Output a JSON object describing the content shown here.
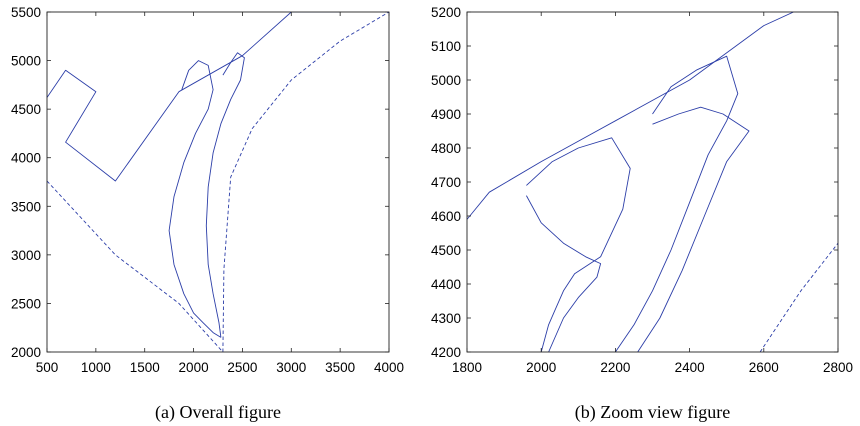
{
  "colors": {
    "line": "#2c3ea8",
    "axes": "#222222"
  },
  "chart_data": [
    {
      "type": "line",
      "caption": "(a) Overall figure",
      "xlim": [
        500,
        4000
      ],
      "ylim": [
        2000,
        5500
      ],
      "xticks": [
        500,
        1000,
        1500,
        2000,
        2500,
        3000,
        3500,
        4000
      ],
      "yticks": [
        2000,
        2500,
        3000,
        3500,
        4000,
        4500,
        5000,
        5500
      ],
      "grid": false,
      "series": [
        {
          "style": "solid",
          "x": [
            500,
            690,
            1000,
            690,
            1200,
            1850,
            2500,
            3000,
            3500
          ],
          "y": [
            4620,
            4900,
            4680,
            4160,
            3760,
            4680,
            5050,
            5500,
            5500
          ]
        },
        {
          "style": "dashed",
          "x": [
            500,
            1200,
            1850,
            2300
          ],
          "y": [
            3760,
            3000,
            2500,
            2000
          ]
        },
        {
          "style": "dashed",
          "x": [
            2300,
            2310,
            2380,
            2600,
            3000,
            3500,
            4000
          ],
          "y": [
            2000,
            2850,
            3800,
            4300,
            4800,
            5200,
            5500
          ]
        },
        {
          "style": "solid",
          "x": [
            1880,
            1950,
            2050,
            2150,
            2200,
            2150,
            2020,
            1900,
            1800,
            1750,
            1800,
            1900,
            2000,
            2100,
            2200,
            2280
          ],
          "y": [
            4700,
            4900,
            5000,
            4950,
            4700,
            4500,
            4250,
            3950,
            3600,
            3250,
            2900,
            2600,
            2400,
            2300,
            2200,
            2150
          ]
        },
        {
          "style": "solid",
          "x": [
            2300,
            2380,
            2450,
            2520,
            2480,
            2380,
            2280,
            2200,
            2150,
            2130,
            2150,
            2200,
            2260,
            2280
          ],
          "y": [
            4850,
            4980,
            5080,
            5030,
            4800,
            4600,
            4350,
            4050,
            3700,
            3300,
            2900,
            2600,
            2300,
            2150
          ]
        }
      ]
    },
    {
      "type": "line",
      "caption": "(b) Zoom view figure",
      "xlim": [
        1800,
        2800
      ],
      "ylim": [
        4200,
        5200
      ],
      "xticks": [
        1800,
        2000,
        2200,
        2400,
        2600,
        2800
      ],
      "yticks": [
        4200,
        4300,
        4400,
        4500,
        4600,
        4700,
        4800,
        4900,
        5000,
        5100,
        5200
      ],
      "grid": false,
      "series": [
        {
          "style": "solid",
          "x": [
            1800,
            1860,
            2000,
            2200,
            2400,
            2600,
            2680
          ],
          "y": [
            4590,
            4670,
            4760,
            4880,
            5000,
            5160,
            5200
          ]
        },
        {
          "style": "dashed",
          "x": [
            2590,
            2700,
            2800
          ],
          "y": [
            4200,
            4380,
            4520
          ]
        },
        {
          "style": "solid",
          "x": [
            1960,
            2030,
            2100,
            2190,
            2240,
            2220,
            2160,
            2090,
            2060,
            2040,
            2020,
            2010,
            2000
          ],
          "y": [
            4690,
            4760,
            4800,
            4830,
            4740,
            4620,
            4480,
            4430,
            4380,
            4330,
            4280,
            4240,
            4200
          ]
        },
        {
          "style": "solid",
          "x": [
            1960,
            2000,
            2060,
            2120,
            2160,
            2150,
            2100,
            2060,
            2020
          ],
          "y": [
            4660,
            4580,
            4520,
            4480,
            4460,
            4420,
            4360,
            4300,
            4200
          ]
        },
        {
          "style": "solid",
          "x": [
            2300,
            2350,
            2420,
            2500,
            2530,
            2500,
            2450,
            2400,
            2350,
            2300,
            2250,
            2200
          ],
          "y": [
            4900,
            4980,
            5030,
            5070,
            4960,
            4880,
            4780,
            4640,
            4500,
            4380,
            4280,
            4200
          ]
        },
        {
          "style": "solid",
          "x": [
            2300,
            2370,
            2430,
            2490,
            2560,
            2500,
            2440,
            2380,
            2320,
            2260
          ],
          "y": [
            4870,
            4900,
            4920,
            4900,
            4850,
            4760,
            4600,
            4440,
            4300,
            4200
          ]
        }
      ]
    }
  ]
}
